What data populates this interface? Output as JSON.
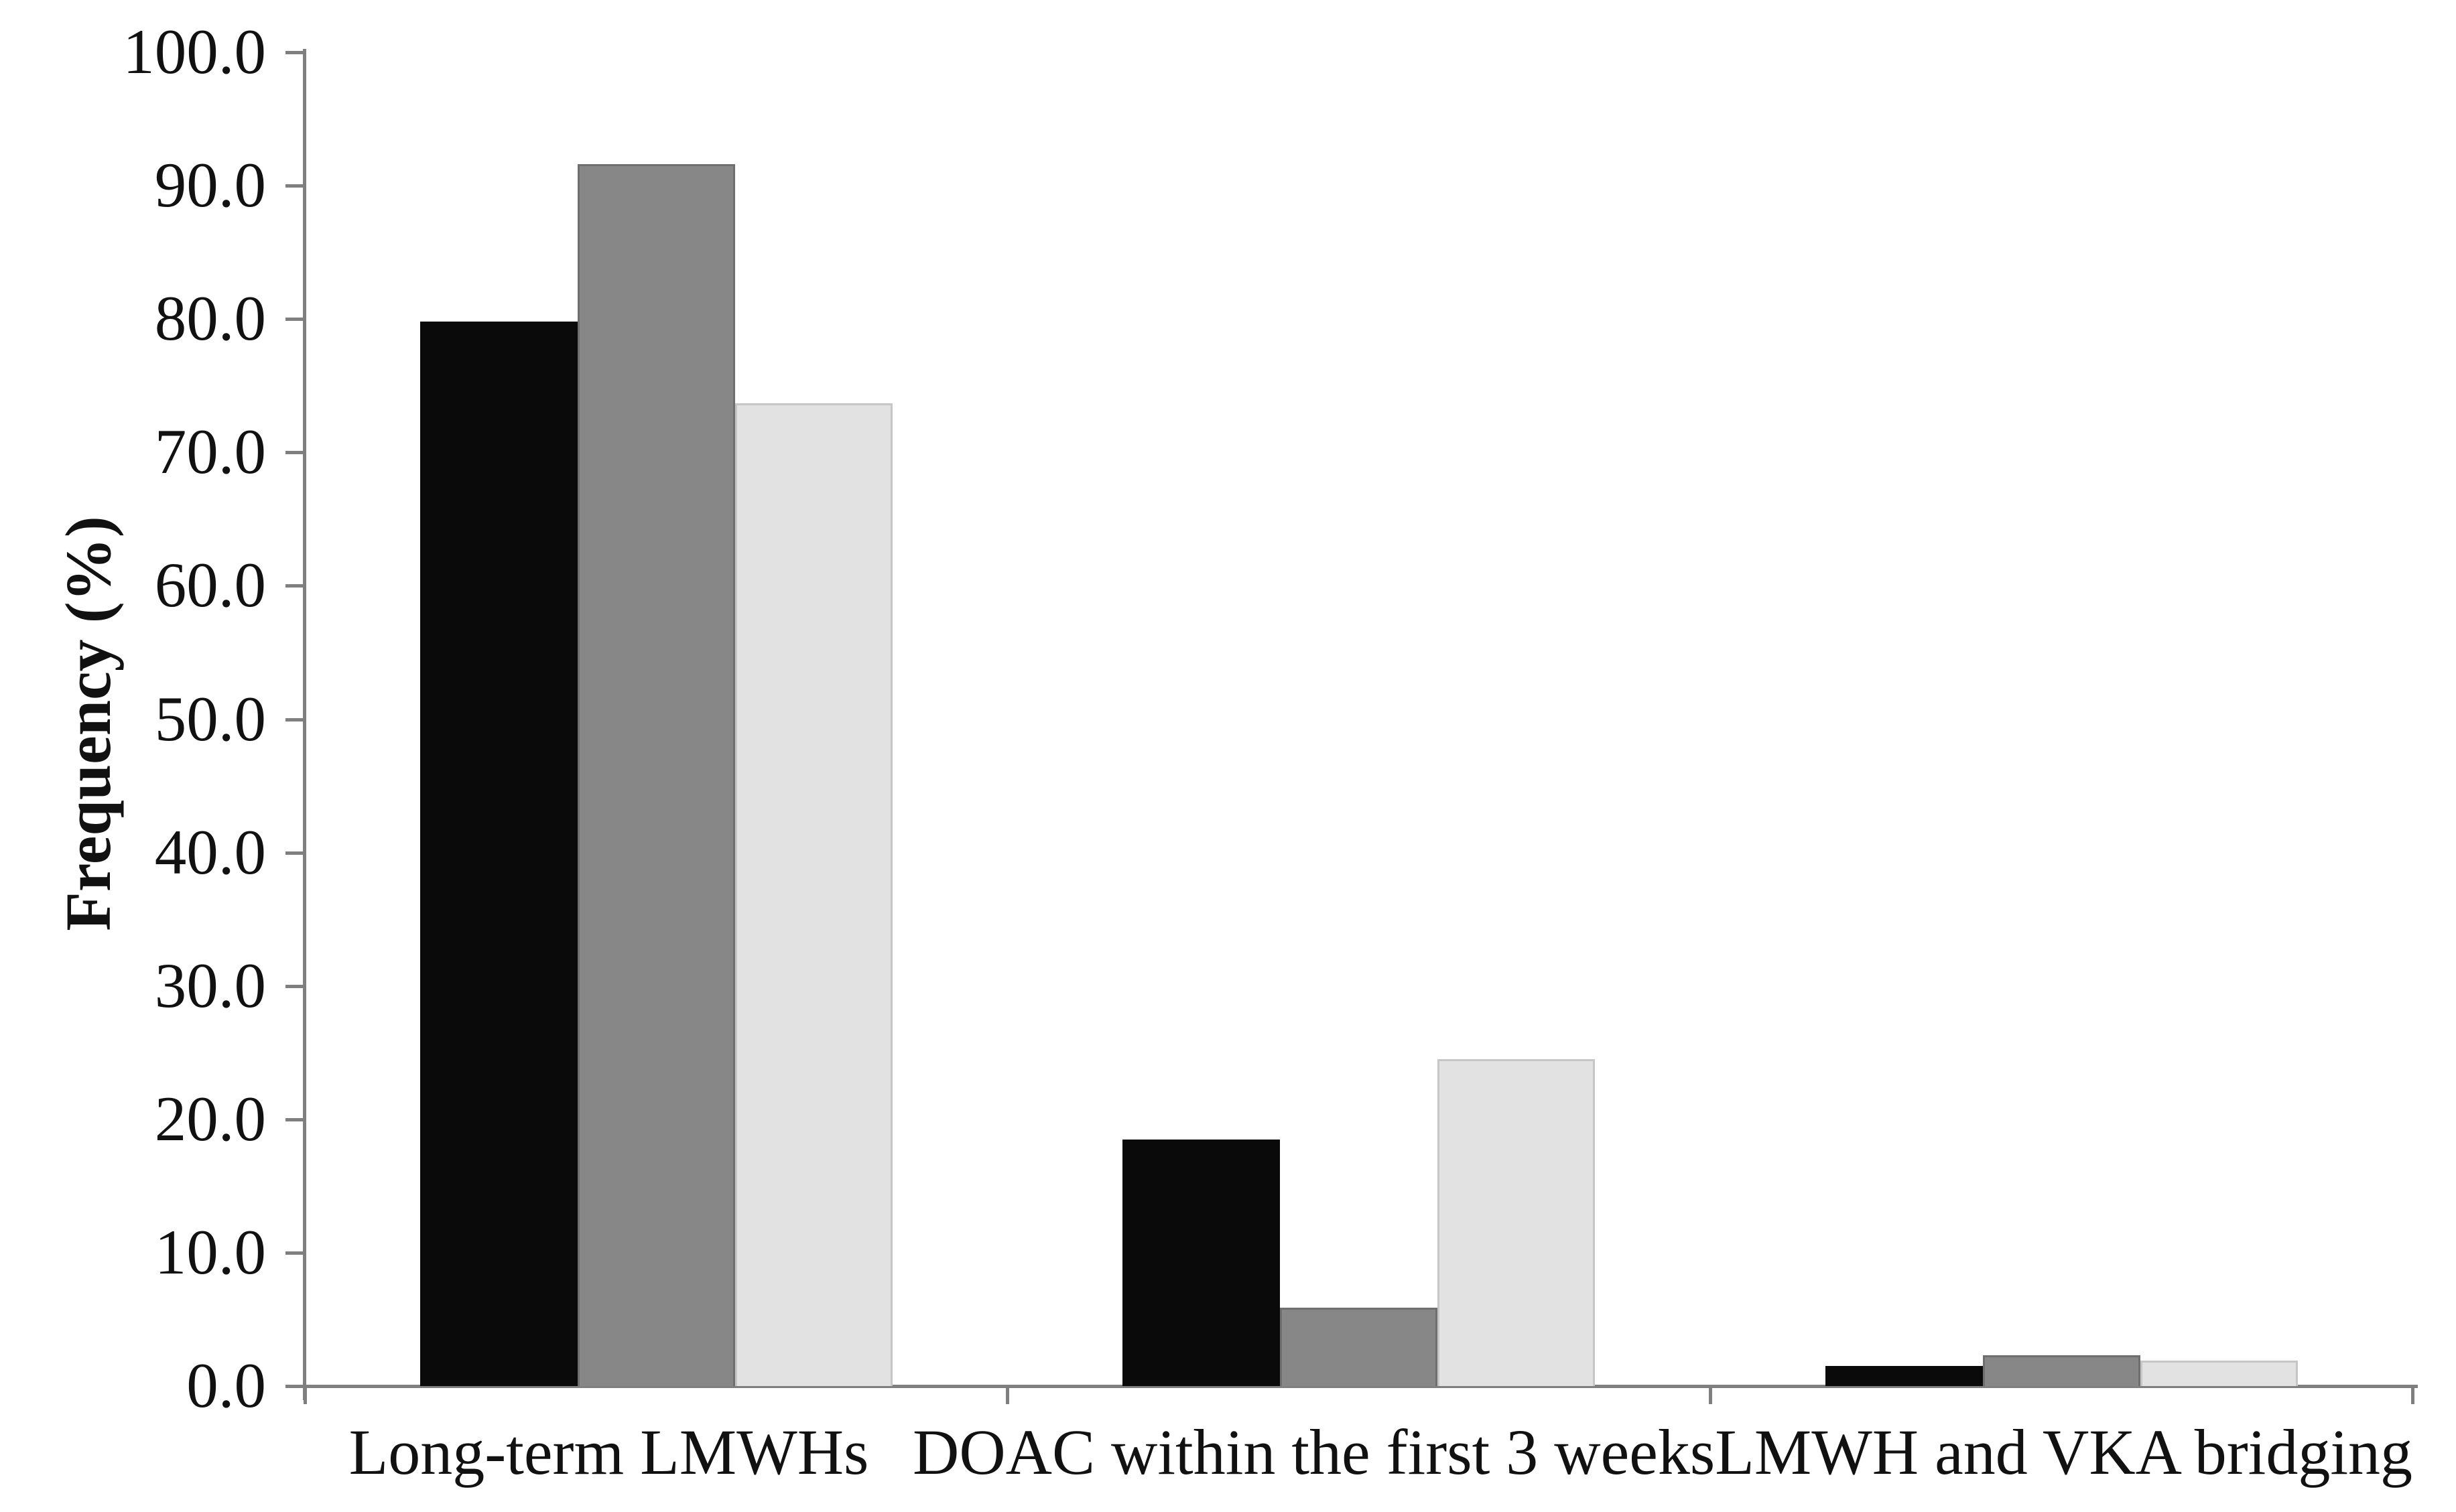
{
  "chart_data": {
    "type": "bar",
    "title": "",
    "xlabel": "",
    "ylabel": "Frequency (%)",
    "ylim": [
      0,
      100
    ],
    "ytick_step": 10,
    "ytick_labels": [
      "0.0",
      "10.0",
      "20.0",
      "30.0",
      "40.0",
      "50.0",
      "60.0",
      "70.0",
      "80.0",
      "90.0",
      "100.0"
    ],
    "categories": [
      "Long-term LMWHs",
      "DOAC within the first 3 weeks",
      "LMWH and VKA bridging"
    ],
    "series": [
      {
        "name": "black",
        "color": "#0a0a0a",
        "border": "#0a0a0a",
        "values": [
          79.8,
          18.5,
          1.5
        ]
      },
      {
        "name": "gray",
        "color": "#878787",
        "border": "#6f6f6f",
        "values": [
          91.6,
          5.9,
          2.3
        ]
      },
      {
        "name": "light-gray",
        "color": "#e2e2e2",
        "border": "#c6c6c6",
        "values": [
          73.7,
          24.5,
          1.9
        ]
      }
    ],
    "legend": "none",
    "grid": false,
    "axis_color": "#7f7f7f",
    "text_color": "#111111"
  }
}
